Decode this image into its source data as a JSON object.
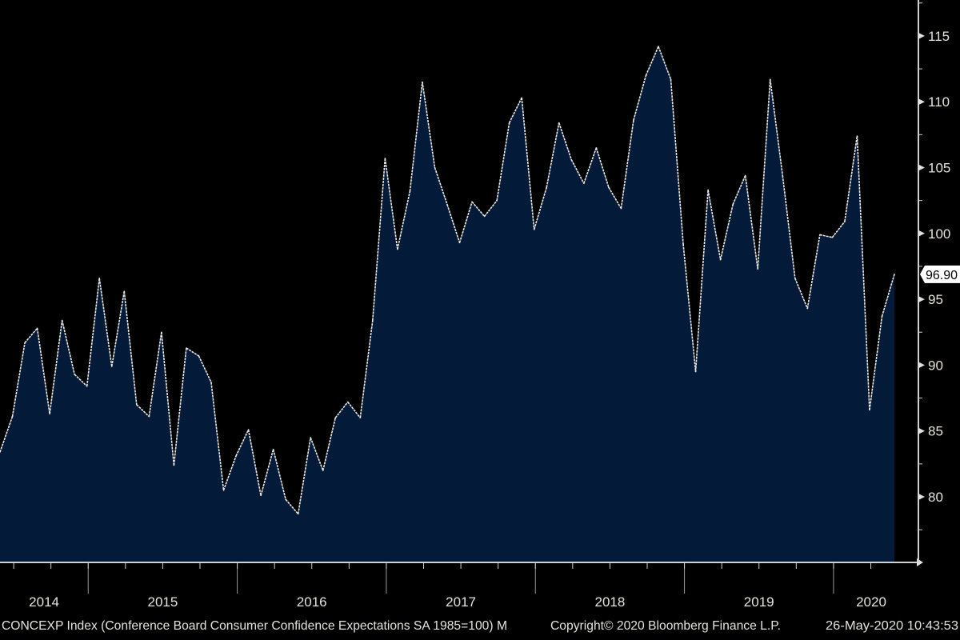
{
  "colors": {
    "background": "#000000",
    "area_fill": "#031b38",
    "line": "#e8e8e8",
    "text": "#e6e2d8"
  },
  "chart_data": {
    "type": "area",
    "title": "CONCEXP Index (Conference Board Consumer Confidence Expectations SA 1985=100)  M",
    "frequency": "monthly",
    "start": "2014-05",
    "end": "2020-05",
    "values": [
      83.4,
      86.1,
      91.7,
      92.8,
      86.3,
      93.4,
      89.3,
      88.4,
      96.6,
      89.9,
      95.6,
      87.0,
      86.1,
      92.5,
      82.4,
      91.3,
      90.7,
      88.7,
      80.5,
      83.1,
      85.1,
      80.1,
      83.6,
      79.8,
      78.7,
      84.5,
      82.0,
      86.0,
      87.2,
      86.0,
      93.4,
      105.7,
      98.8,
      103.2,
      111.5,
      105.0,
      102.2,
      99.3,
      102.4,
      101.3,
      102.5,
      108.4,
      110.3,
      100.3,
      103.5,
      108.4,
      105.6,
      103.8,
      106.5,
      103.5,
      101.9,
      108.6,
      112.0,
      114.2,
      111.7,
      99.2,
      89.5,
      103.3,
      98.0,
      102.2,
      104.4,
      97.3,
      111.7,
      104.4,
      96.6,
      94.3,
      99.9,
      99.7,
      100.9,
      107.4,
      86.6,
      93.7,
      96.9
    ],
    "x_tick_labels": [
      "2014",
      "2015",
      "2016",
      "2017",
      "2018",
      "2019",
      "2020"
    ],
    "y_tick_labels": [
      "80",
      "85",
      "90",
      "95",
      "100",
      "105",
      "110",
      "115"
    ],
    "y_ticks": [
      80,
      85,
      90,
      95,
      100,
      105,
      110,
      115
    ],
    "ylim": [
      75,
      120
    ],
    "last_value_label": "96.90",
    "last_value": 96.9,
    "y_axis_side": "right",
    "grid": false,
    "legend": "none"
  },
  "footer": {
    "title": "CONCEXP Index (Conference Board Consumer Confidence Expectations SA 1985=100)  M",
    "copyright": "Copyright© 2020 Bloomberg Finance L.P.",
    "timestamp": "26-May-2020 10:43:53"
  }
}
